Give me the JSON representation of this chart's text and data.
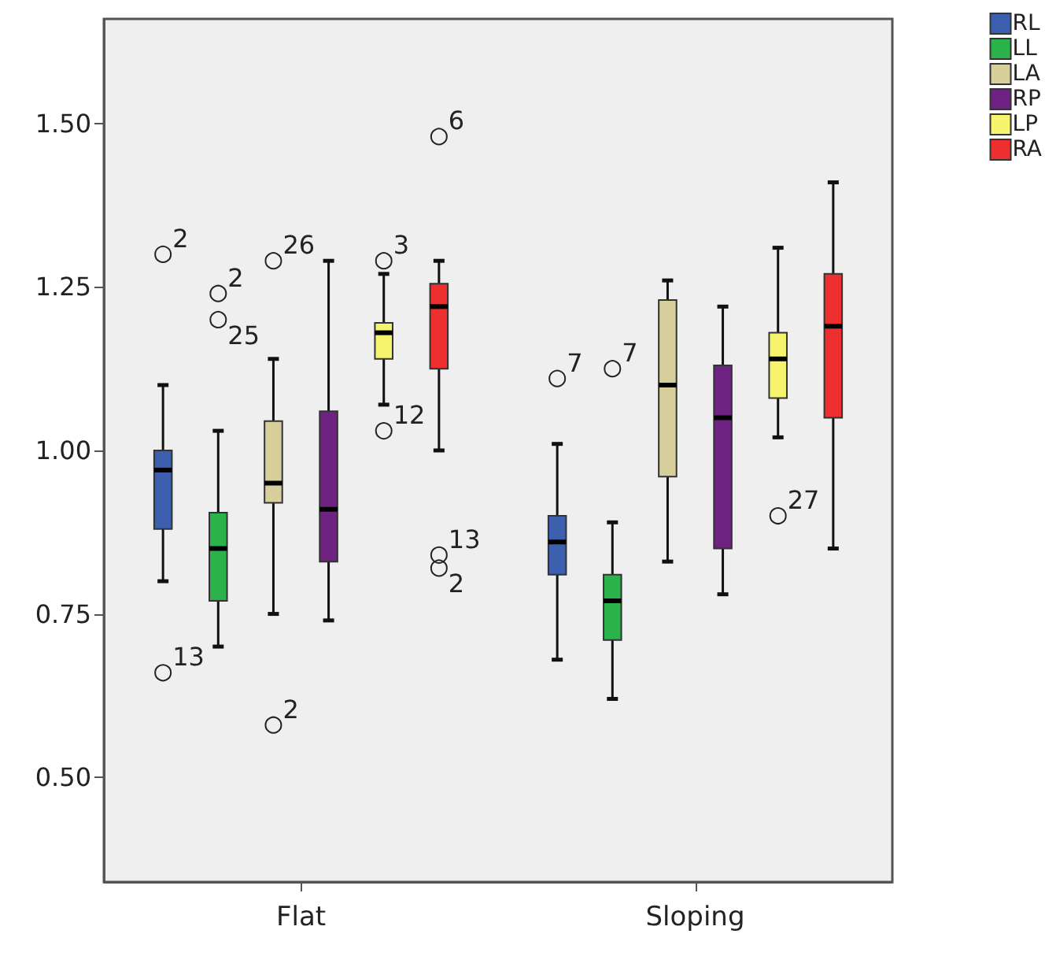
{
  "chart_data": {
    "type": "box",
    "categories": [
      "Flat",
      "Sloping"
    ],
    "ylim": [
      0.34,
      1.66
    ],
    "yticks": [
      {
        "value": 0.5,
        "label": "0.50"
      },
      {
        "value": 0.75,
        "label": "0.75"
      },
      {
        "value": 1.0,
        "label": "1.00"
      },
      {
        "value": 1.25,
        "label": "1.25"
      },
      {
        "value": 1.5,
        "label": "1.50"
      }
    ],
    "legend": "top right",
    "series": [
      {
        "name": "RL",
        "color": "#3c5fb0",
        "boxes": [
          {
            "low": 0.8,
            "q1": 0.88,
            "median": 0.97,
            "q3": 1.0,
            "high": 1.1,
            "outliers": [
              1.3,
              0.66
            ]
          },
          {
            "low": 0.68,
            "q1": 0.81,
            "median": 0.86,
            "q3": 0.9,
            "high": 1.01,
            "outliers": [
              1.11
            ]
          }
        ]
      },
      {
        "name": "LL",
        "color": "#2bb34b",
        "boxes": [
          {
            "low": 0.7,
            "q1": 0.77,
            "median": 0.85,
            "q3": 0.905,
            "high": 1.03,
            "outliers": [
              1.24,
              1.2
            ]
          },
          {
            "low": 0.62,
            "q1": 0.71,
            "median": 0.77,
            "q3": 0.81,
            "high": 0.89,
            "outliers": [
              1.125
            ]
          }
        ]
      },
      {
        "name": "LA",
        "color": "#d6cf9c",
        "boxes": [
          {
            "low": 0.75,
            "q1": 0.92,
            "median": 0.95,
            "q3": 1.045,
            "high": 1.14,
            "outliers": [
              1.29,
              0.58
            ]
          },
          {
            "low": 0.83,
            "q1": 0.96,
            "median": 1.1,
            "q3": 1.23,
            "high": 1.26
          }
        ]
      },
      {
        "name": "RP",
        "color": "#6e2382",
        "boxes": [
          {
            "low": 0.74,
            "q1": 0.83,
            "median": 0.91,
            "q3": 1.06,
            "high": 1.29
          },
          {
            "low": 0.78,
            "q1": 0.85,
            "median": 1.05,
            "q3": 1.13,
            "high": 1.22
          }
        ]
      },
      {
        "name": "LP",
        "color": "#f6f46c",
        "boxes": [
          {
            "low": 1.07,
            "q1": 1.14,
            "median": 1.18,
            "q3": 1.195,
            "high": 1.27,
            "outliers": [
              1.29,
              1.03
            ]
          },
          {
            "low": 1.02,
            "q1": 1.08,
            "median": 1.14,
            "q3": 1.18,
            "high": 1.31,
            "outliers": [
              0.9
            ]
          }
        ]
      },
      {
        "name": "RA",
        "color": "#ee2f2f",
        "boxes": [
          {
            "low": 1.0,
            "q1": 1.125,
            "median": 1.22,
            "q3": 1.255,
            "high": 1.29,
            "outliers": [
              1.48,
              0.84,
              0.82
            ]
          },
          {
            "low": 0.85,
            "q1": 1.05,
            "median": 1.19,
            "q3": 1.27,
            "high": 1.41
          }
        ]
      }
    ],
    "annotations": [
      "2",
      "13",
      "7",
      "2",
      "25",
      "7",
      "26",
      "2",
      "3",
      "12",
      "27",
      "6",
      "13",
      "2"
    ]
  }
}
